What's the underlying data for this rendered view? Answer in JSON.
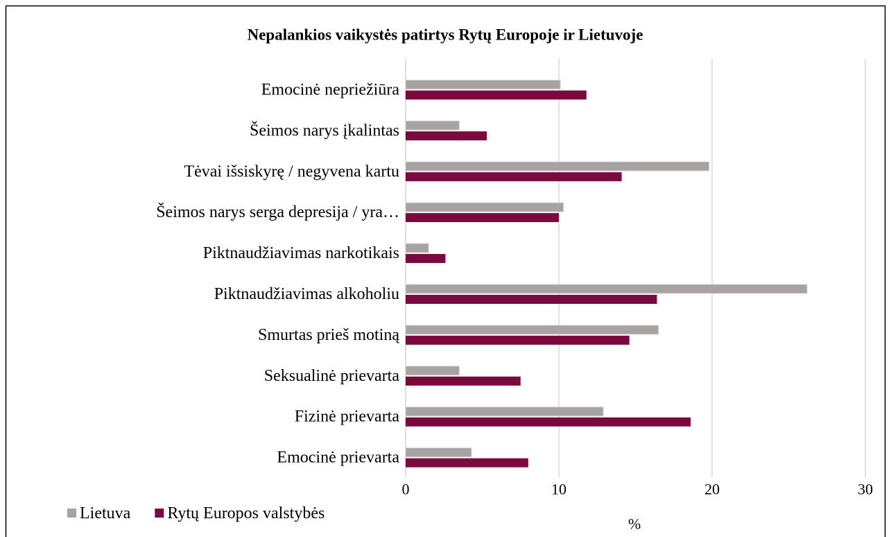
{
  "chart_data": {
    "type": "barh",
    "title": "Nepalankios vaikystės patirtys Rytų Europoje ir Lietuvoje",
    "categories": [
      "Emocinė nepriežiūra",
      "Šeimos narys įkalintas",
      "Tėvai išsiskyrę / negyvena kartu",
      "Šeimos narys serga depresija / yra…",
      "Piktnaudžiavimas narkotikais",
      "Piktnaudžiavimas alkoholiu",
      "Smurtas prieš motiną",
      "Seksualinė prievarta",
      "Fizinė prievarta",
      "Emocinė prievarta"
    ],
    "series": [
      {
        "name": "Lietuva",
        "color": "#a8a3a3",
        "values": [
          10.1,
          3.5,
          19.8,
          10.3,
          1.5,
          26.2,
          16.5,
          3.5,
          12.9,
          4.3
        ]
      },
      {
        "name": "Rytų Europos valstybės",
        "color": "#7a0a3e",
        "values": [
          11.8,
          5.3,
          14.1,
          10.0,
          2.6,
          16.4,
          14.6,
          7.5,
          18.6,
          8.0
        ]
      }
    ],
    "xlabel": "%",
    "xlim": [
      0,
      30
    ],
    "xticks": [
      0,
      10,
      20,
      30
    ],
    "grid": true,
    "legend": "bottom-left"
  }
}
